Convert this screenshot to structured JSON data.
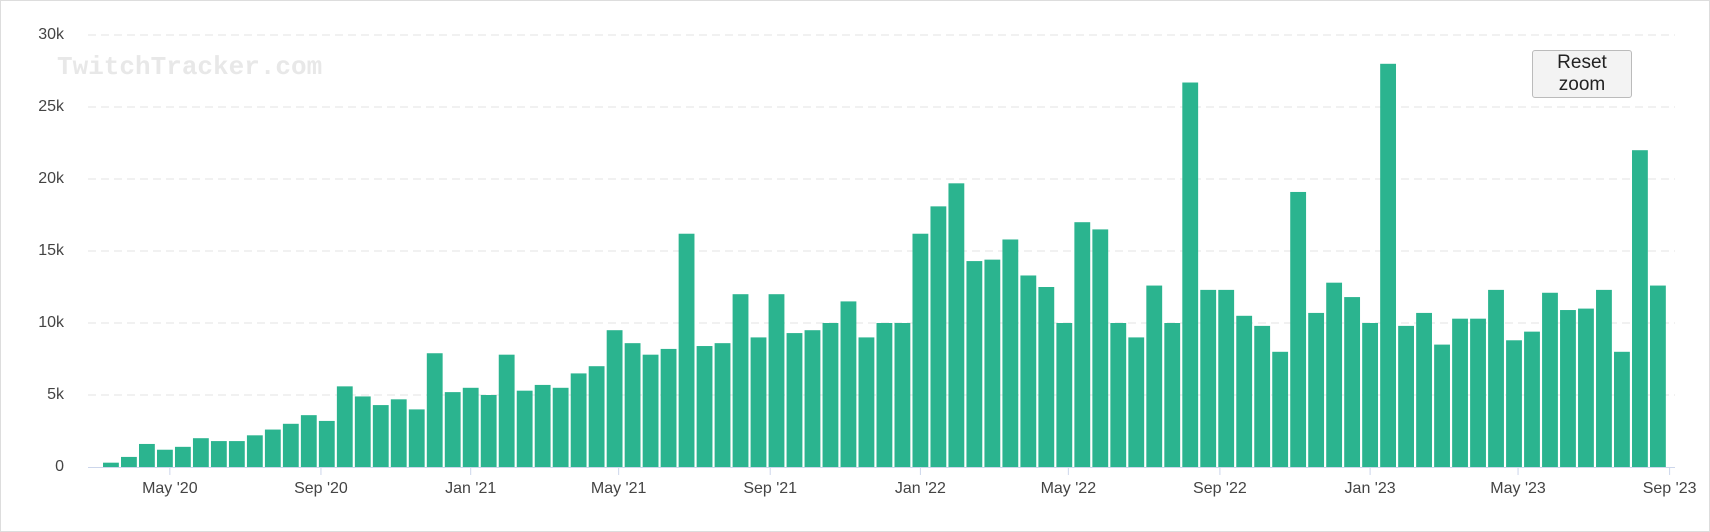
{
  "chart_data": {
    "type": "bar",
    "watermark": "TwitchTracker.com",
    "button": "Reset zoom",
    "color": "#2bb48f",
    "grid": true,
    "x": [
      2020.2,
      2020.24,
      2020.28,
      2020.32,
      2020.36,
      2020.4,
      2020.44,
      2020.48,
      2020.52,
      2020.56,
      2020.6,
      2020.64,
      2020.68,
      2020.72,
      2020.76,
      2020.8,
      2020.84,
      2020.88,
      2020.92,
      2020.96,
      2021.0,
      2021.04,
      2021.08,
      2021.12,
      2021.16,
      2021.2,
      2021.24,
      2021.28,
      2021.32,
      2021.36,
      2021.4,
      2021.44,
      2021.48,
      2021.52,
      2021.56,
      2021.6,
      2021.64,
      2021.68,
      2021.72,
      2021.76,
      2021.8,
      2021.84,
      2021.88,
      2021.92,
      2021.96,
      2022.0,
      2022.04,
      2022.08,
      2022.12,
      2022.16,
      2022.2,
      2022.24,
      2022.28,
      2022.32,
      2022.36,
      2022.4,
      2022.44,
      2022.48,
      2022.52,
      2022.56,
      2022.6,
      2022.64,
      2022.68,
      2022.72,
      2022.76,
      2022.8,
      2022.84,
      2022.88,
      2022.92,
      2022.96,
      2023.0,
      2023.04,
      2023.08,
      2023.12,
      2023.16,
      2023.2,
      2023.24,
      2023.28,
      2023.32,
      2023.36,
      2023.4,
      2023.44,
      2023.48,
      2023.52,
      2023.56,
      2023.6,
      2023.64
    ],
    "values": [
      300,
      700,
      1600,
      1200,
      1400,
      2000,
      1800,
      1800,
      2200,
      2600,
      3000,
      3600,
      3200,
      5600,
      4900,
      4300,
      4700,
      4000,
      7900,
      5200,
      5500,
      5000,
      7800,
      5300,
      5700,
      5500,
      6500,
      7000,
      9500,
      8600,
      7800,
      8200,
      16200,
      8400,
      8600,
      12000,
      9000,
      12000,
      9300,
      9500,
      10000,
      11500,
      9000,
      10000,
      10000,
      16200,
      18100,
      19700,
      14300,
      14400,
      15800,
      13300,
      12500,
      10000,
      17000,
      16500,
      10000,
      9000,
      12600,
      10000,
      26700,
      12300,
      12300,
      10500,
      9800,
      8000,
      19100,
      10700,
      12800,
      11800,
      10000,
      28000,
      9800,
      10700,
      8500,
      10300,
      10300,
      12300,
      8800,
      9400,
      12100,
      10900,
      11000,
      12300,
      8000,
      22000,
      12600
    ],
    "xlim": [
      2020.149,
      2023.678
    ],
    "xticks": [
      {
        "value": 2020.331,
        "label": "May '20"
      },
      {
        "value": 2020.667,
        "label": "Sep '20"
      },
      {
        "value": 2021.0,
        "label": "Jan '21"
      },
      {
        "value": 2021.329,
        "label": "May '21"
      },
      {
        "value": 2021.666,
        "label": "Sep '21"
      },
      {
        "value": 2022.0,
        "label": "Jan '22"
      },
      {
        "value": 2022.329,
        "label": "May '22"
      },
      {
        "value": 2022.666,
        "label": "Sep '22"
      },
      {
        "value": 2023.0,
        "label": "Jan '23"
      },
      {
        "value": 2023.329,
        "label": "May '23"
      },
      {
        "value": 2023.666,
        "label": "Sep '23"
      }
    ],
    "ylim": [
      0,
      30000
    ],
    "yticks": [
      0,
      {
        "value": 5000,
        "label": "5k"
      },
      {
        "value": 10000,
        "label": "10k"
      },
      {
        "value": 15000,
        "label": "15k"
      },
      {
        "value": 20000,
        "label": "20k"
      },
      {
        "value": 25000,
        "label": "25k"
      },
      {
        "value": 30000,
        "label": "30k"
      }
    ]
  }
}
